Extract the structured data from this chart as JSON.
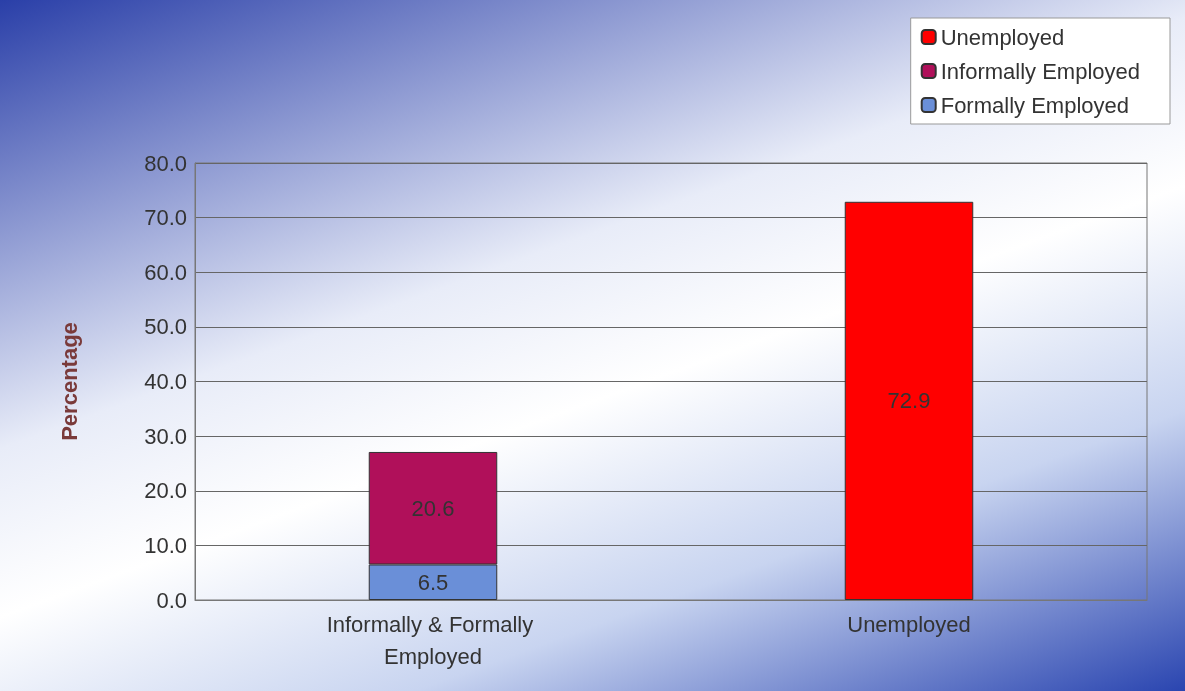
{
  "chart_data": {
    "type": "bar",
    "stacked": true,
    "ylabel": "Percentage",
    "categories": [
      "Informally & Formally Employed",
      "Unemployed"
    ],
    "series": [
      {
        "name": "Formally Employed",
        "color": "#6a8fd8",
        "values": [
          6.5,
          null
        ]
      },
      {
        "name": "Informally Employed",
        "color": "#b0105a",
        "values": [
          20.6,
          null
        ]
      },
      {
        "name": "Unemployed",
        "color": "#ff0000",
        "values": [
          null,
          72.9
        ]
      }
    ],
    "ylim": [
      0,
      80
    ],
    "yticks": [
      {
        "value": 0,
        "label": "0.0"
      },
      {
        "value": 10,
        "label": "10.0"
      },
      {
        "value": 20,
        "label": "20.0"
      },
      {
        "value": 30,
        "label": "30.0"
      },
      {
        "value": 40,
        "label": "40.0"
      },
      {
        "value": 50,
        "label": "50.0"
      },
      {
        "value": 60,
        "label": "60.0"
      },
      {
        "value": 70,
        "label": "70.0"
      },
      {
        "value": 80,
        "label": "80.0"
      }
    ],
    "grid": "y",
    "legend": "top right",
    "data_labels": true
  }
}
